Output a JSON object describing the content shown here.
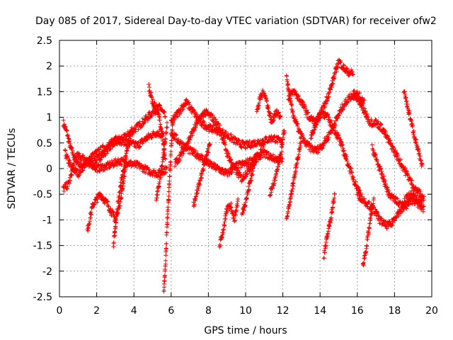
{
  "chart_data": {
    "type": "scatter",
    "title": "Day 085 of 2017, Sidereal Day-to-day VTEC variation (SDTVAR) for receiver ofw2",
    "xlabel": "GPS time / hours",
    "ylabel": "SDTVAR / TECUs",
    "xlim": [
      0,
      20
    ],
    "ylim": [
      -2.5,
      2.5
    ],
    "xticks": [
      "0",
      "2",
      "4",
      "6",
      "8",
      "10",
      "12",
      "14",
      "16",
      "18",
      "20"
    ],
    "yticks": [
      "-2.5",
      "-2",
      "-1.5",
      "-1",
      "-0.5",
      "0",
      "0.5",
      "1",
      "1.5",
      "2",
      "2.5"
    ],
    "grid": true,
    "marker": "plus",
    "color": "#ff0000",
    "tracks": [
      {
        "name": "track-01",
        "x": [
          0.2,
          0.4,
          0.6,
          0.9,
          1.3,
          1.8,
          2.4,
          3.0,
          3.5,
          4.0,
          4.6,
          5.0,
          5.4,
          5.7
        ],
        "y": [
          0.9,
          0.7,
          0.4,
          0.15,
          0.05,
          0.1,
          0.3,
          0.55,
          0.6,
          0.75,
          0.95,
          1.1,
          1.2,
          1.0
        ]
      },
      {
        "name": "track-02",
        "x": [
          0.3,
          0.6,
          1.0,
          1.6,
          2.2,
          2.8,
          3.2,
          3.7,
          4.2,
          4.7,
          5.2,
          5.6
        ],
        "y": [
          0.3,
          0.05,
          -0.1,
          0.2,
          0.35,
          0.5,
          0.55,
          0.5,
          0.45,
          0.6,
          0.7,
          0.65
        ]
      },
      {
        "name": "track-03",
        "x": [
          0.2,
          0.5,
          0.9,
          1.4,
          2.0,
          2.6,
          3.2,
          3.8,
          4.3,
          4.8,
          5.3,
          5.8
        ],
        "y": [
          -0.4,
          -0.3,
          0.25,
          0.2,
          0.0,
          0.05,
          0.15,
          0.1,
          0.05,
          -0.05,
          -0.1,
          0.0
        ]
      },
      {
        "name": "track-04",
        "x": [
          1.5,
          1.8,
          2.2,
          2.6,
          3.0,
          3.3,
          3.6
        ],
        "y": [
          -1.2,
          -0.7,
          -0.5,
          -0.7,
          -1.0,
          -0.6,
          0.2
        ]
      },
      {
        "name": "track-05",
        "x": [
          2.9,
          3.1,
          3.3,
          3.6,
          3.9
        ],
        "y": [
          -1.5,
          -0.8,
          -0.3,
          0.3,
          0.8
        ]
      },
      {
        "name": "track-06",
        "x": [
          4.8,
          5.0,
          5.3,
          5.5,
          5.7
        ],
        "y": [
          1.6,
          1.3,
          1.1,
          0.7,
          0.1
        ]
      },
      {
        "name": "track-07",
        "x": [
          5.6,
          5.7,
          5.8,
          5.9,
          6.0,
          6.1
        ],
        "y": [
          -2.45,
          -1.8,
          -1.0,
          -0.3,
          0.4,
          1.0
        ]
      },
      {
        "name": "track-08",
        "x": [
          5.2,
          5.4,
          5.6,
          5.8
        ],
        "y": [
          -0.6,
          -0.2,
          0.3,
          0.9
        ]
      },
      {
        "name": "track-09",
        "x": [
          6.0,
          6.4,
          6.8,
          7.2,
          7.6,
          8.0,
          8.4,
          8.8,
          9.2,
          9.6,
          10.0,
          10.5,
          11.0,
          11.5,
          12.0
        ],
        "y": [
          0.9,
          1.1,
          1.3,
          1.1,
          0.9,
          0.8,
          0.75,
          0.7,
          0.6,
          0.5,
          0.45,
          0.5,
          0.55,
          0.6,
          0.5
        ]
      },
      {
        "name": "track-10",
        "x": [
          6.0,
          6.5,
          7.0,
          7.5,
          8.0,
          8.5,
          9.0,
          9.5,
          10.0,
          10.5,
          11.0,
          11.5,
          12.0
        ],
        "y": [
          0.7,
          0.5,
          0.35,
          0.25,
          0.1,
          0.0,
          -0.1,
          0.05,
          0.1,
          0.2,
          0.3,
          0.2,
          0.15
        ]
      },
      {
        "name": "track-11",
        "x": [
          6.2,
          6.6,
          7.0,
          7.4,
          7.8,
          8.2,
          8.6,
          9.0,
          9.4,
          9.8,
          10.2,
          10.6,
          11.0
        ],
        "y": [
          0.1,
          0.3,
          0.6,
          0.9,
          1.1,
          1.0,
          0.8,
          0.3,
          0.0,
          -0.2,
          0.0,
          0.2,
          0.5
        ]
      },
      {
        "name": "track-12",
        "x": [
          7.2,
          7.5,
          7.8,
          8.1
        ],
        "y": [
          -0.7,
          -0.3,
          0.1,
          0.5
        ]
      },
      {
        "name": "track-13",
        "x": [
          8.6,
          8.8,
          9.0,
          9.2,
          9.4,
          9.6
        ],
        "y": [
          -1.5,
          -1.2,
          -0.8,
          -0.7,
          -1.0,
          -0.6
        ]
      },
      {
        "name": "track-14",
        "x": [
          9.8,
          10.1,
          10.4,
          10.6
        ],
        "y": [
          -0.9,
          -0.5,
          0.0,
          0.3
        ]
      },
      {
        "name": "track-15",
        "x": [
          10.6,
          10.8,
          11.0,
          11.2,
          11.4,
          11.6,
          11.9
        ],
        "y": [
          1.1,
          1.4,
          1.5,
          1.2,
          0.9,
          1.1,
          1.0
        ]
      },
      {
        "name": "track-16",
        "x": [
          11.3,
          11.6,
          11.9,
          12.1
        ],
        "y": [
          -0.5,
          -0.2,
          0.3,
          0.8
        ]
      },
      {
        "name": "track-17",
        "x": [
          12.2,
          12.4,
          12.6,
          12.9,
          13.2,
          13.5,
          13.8,
          14.1,
          14.4,
          14.8,
          15.2,
          15.6,
          16.0,
          16.4
        ],
        "y": [
          1.8,
          1.3,
          1.0,
          0.7,
          0.5,
          0.4,
          0.35,
          0.45,
          0.6,
          0.9,
          1.2,
          1.4,
          1.45,
          1.3
        ]
      },
      {
        "name": "track-18",
        "x": [
          12.3,
          12.6,
          13.0,
          13.4,
          13.8,
          14.2,
          14.6,
          15.0,
          15.4,
          15.8
        ],
        "y": [
          1.4,
          1.5,
          1.3,
          1.0,
          0.9,
          1.2,
          1.6,
          2.1,
          1.9,
          1.85
        ]
      },
      {
        "name": "track-19",
        "x": [
          12.2,
          12.4,
          12.6,
          12.8,
          13.0
        ],
        "y": [
          -1.0,
          -0.6,
          -0.2,
          0.2,
          0.6
        ]
      },
      {
        "name": "track-20",
        "x": [
          13.5,
          13.8,
          14.1,
          14.4,
          14.7,
          15.0,
          15.3,
          15.6,
          15.9,
          16.2
        ],
        "y": [
          0.6,
          0.9,
          1.1,
          1.0,
          0.8,
          0.6,
          0.3,
          0.0,
          -0.3,
          -0.5
        ]
      },
      {
        "name": "track-21",
        "x": [
          14.2,
          14.4,
          14.6,
          14.8
        ],
        "y": [
          -1.7,
          -1.3,
          -0.9,
          -0.5
        ]
      },
      {
        "name": "track-22",
        "x": [
          15.8,
          16.1,
          16.4,
          16.7,
          17.0,
          17.3,
          17.6,
          17.9,
          18.2,
          18.5,
          18.8,
          19.1,
          19.4,
          19.6
        ],
        "y": [
          1.5,
          1.3,
          1.1,
          0.9,
          0.9,
          0.8,
          0.6,
          0.4,
          0.2,
          0.0,
          -0.2,
          -0.4,
          -0.5,
          -0.6
        ]
      },
      {
        "name": "track-23",
        "x": [
          16.0,
          16.3,
          16.6,
          16.9,
          17.2,
          17.5,
          17.8,
          18.1,
          18.4,
          18.7,
          19.0,
          19.3,
          19.6
        ],
        "y": [
          -0.5,
          -0.6,
          -0.7,
          -0.8,
          -1.0,
          -1.1,
          -1.1,
          -0.9,
          -0.8,
          -0.7,
          -0.6,
          -0.7,
          -0.8
        ]
      },
      {
        "name": "track-24",
        "x": [
          16.3,
          16.5,
          16.7,
          16.9
        ],
        "y": [
          -1.9,
          -1.5,
          -1.0,
          -0.6
        ]
      },
      {
        "name": "track-25",
        "x": [
          16.8,
          17.1,
          17.4,
          17.7,
          18.0,
          18.3,
          18.6,
          18.9,
          19.2,
          19.5
        ],
        "y": [
          0.4,
          0.1,
          -0.2,
          -0.5,
          -0.6,
          -0.7,
          -0.6,
          -0.5,
          -0.6,
          -0.7
        ]
      },
      {
        "name": "track-26",
        "x": [
          18.5,
          18.7,
          18.9,
          19.1,
          19.3,
          19.5
        ],
        "y": [
          1.55,
          1.2,
          0.9,
          0.6,
          0.3,
          0.0
        ]
      }
    ]
  }
}
